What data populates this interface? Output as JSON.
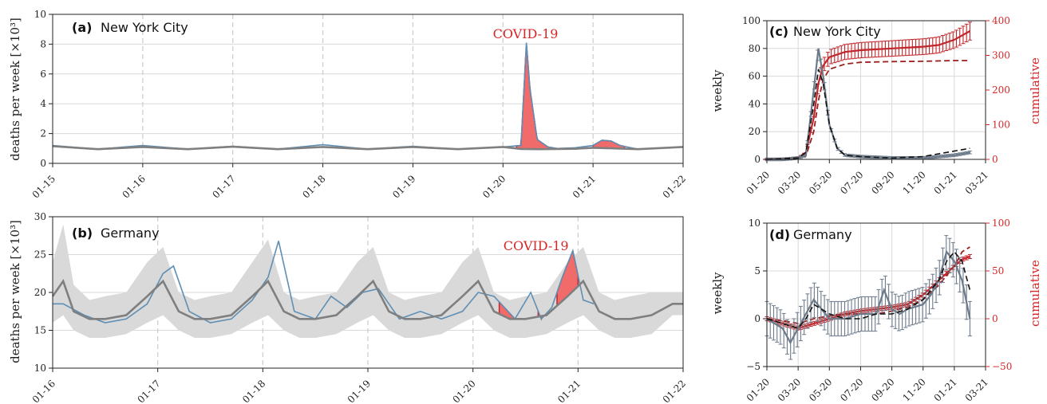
{
  "colors": {
    "covid_fill": "#f26b6b",
    "covid_line": "#c0262b",
    "observed": "#5f8fb4",
    "baseline": "#7f7f7f",
    "band": "#d9d9d9",
    "weekly_gray": "#6c7a8a",
    "cum_red": "#c0262b",
    "dash": "#111111",
    "dash_red": "#9a1f1f"
  },
  "chart_data": [
    {
      "id": "a",
      "type": "area",
      "panel_label": "(a)",
      "title": "New York City",
      "ylabel": "deaths per week $[\\times 10^3]$",
      "ylabel_text": "deaths per week [×10³]",
      "annotation": "COVID-19",
      "annotation_x": 5.25,
      "annotation_y": 8.4,
      "xlim": [
        0,
        7
      ],
      "ylim": [
        0,
        10
      ],
      "xticks": [
        0,
        1,
        2,
        3,
        4,
        5,
        6,
        7
      ],
      "xtick_labels": [
        "01-15",
        "01-16",
        "01-17",
        "01-18",
        "01-19",
        "01-20",
        "01-21",
        "01-22"
      ],
      "yticks": [
        0,
        2,
        4,
        6,
        8,
        10
      ],
      "ytick_labels": [
        "0",
        "2",
        "4",
        "6",
        "8",
        "10"
      ],
      "baseline": {
        "name": "",
        "x": [
          0,
          0.5,
          1,
          1.5,
          2,
          2.5,
          3,
          3.5,
          4,
          4.5,
          5,
          5.2,
          5.4,
          5.6,
          5.8,
          6,
          6.5,
          7
        ],
        "y": [
          1.15,
          0.95,
          1.1,
          0.95,
          1.12,
          0.95,
          1.1,
          0.95,
          1.1,
          0.95,
          1.1,
          0.97,
          0.95,
          0.96,
          0.98,
          1.05,
          0.95,
          1.1
        ]
      },
      "observed": {
        "name": "",
        "x": [
          0,
          0.5,
          1,
          1.5,
          2,
          2.5,
          3,
          3.5,
          4,
          4.5,
          5,
          5.2,
          5.26,
          5.3,
          5.38,
          5.5,
          5.6,
          5.8,
          6,
          6.1,
          6.2,
          6.3,
          6.5,
          7
        ],
        "y": [
          1.2,
          0.95,
          1.2,
          0.95,
          1.15,
          0.95,
          1.25,
          0.95,
          1.15,
          0.95,
          1.1,
          1.2,
          8.1,
          5.0,
          1.6,
          1.1,
          1.0,
          1.05,
          1.2,
          1.55,
          1.5,
          1.2,
          0.95,
          1.1
        ]
      },
      "covid_regions": [
        [
          5.15,
          5.6
        ],
        [
          6.0,
          6.35
        ]
      ]
    },
    {
      "id": "b",
      "type": "area",
      "panel_label": "(b)",
      "title": "Germany",
      "ylabel": "deaths per week $[\\times 10^3]$",
      "ylabel_text": "deaths per week [×10³]",
      "annotation": "COVID-19",
      "annotation_x": 4.6,
      "annotation_y": 25.6,
      "xlim": [
        0,
        6
      ],
      "ylim": [
        10,
        30
      ],
      "xticks": [
        0,
        1,
        2,
        3,
        4,
        5,
        6
      ],
      "xtick_labels": [
        "01-16",
        "01-17",
        "01-18",
        "01-19",
        "01-20",
        "01-21",
        "01-22"
      ],
      "yticks": [
        10,
        15,
        20,
        25,
        30
      ],
      "ytick_labels": [
        "10",
        "15",
        "20",
        "25",
        "30"
      ],
      "baseline": {
        "name": "",
        "x": [
          0,
          0.1,
          0.2,
          0.35,
          0.5,
          0.7,
          0.9,
          1.05,
          1.2,
          1.35,
          1.5,
          1.7,
          1.9,
          2.05,
          2.2,
          2.35,
          2.5,
          2.7,
          2.9,
          3.05,
          3.2,
          3.35,
          3.5,
          3.7,
          3.9,
          4.05,
          4.2,
          4.35,
          4.5,
          4.7,
          4.9,
          5.05,
          5.2,
          5.35,
          5.5,
          5.7,
          5.9,
          6
        ],
        "y": [
          19.5,
          21.5,
          17.5,
          16.5,
          16.5,
          17.0,
          19.5,
          21.5,
          17.5,
          16.5,
          16.5,
          17.0,
          19.5,
          21.5,
          17.5,
          16.5,
          16.5,
          17.0,
          19.5,
          21.5,
          17.5,
          16.5,
          16.5,
          17.0,
          19.5,
          21.5,
          17.5,
          16.5,
          16.5,
          17.0,
          19.5,
          21.5,
          17.5,
          16.5,
          16.5,
          17.0,
          18.5,
          18.5
        ]
      },
      "band": {
        "upper": [
          24,
          29,
          21,
          19,
          19.5,
          20,
          24,
          26,
          20,
          19,
          19.5,
          20,
          24,
          27,
          20,
          19,
          19.5,
          20,
          24,
          26,
          20,
          19,
          19.5,
          20,
          24,
          26,
          20,
          19,
          19.5,
          20,
          24,
          26,
          20,
          19,
          19.5,
          20,
          20,
          20
        ],
        "lower": [
          16,
          17,
          15,
          14,
          14,
          14.5,
          16,
          17,
          15,
          14,
          14,
          14.5,
          16,
          17,
          15,
          14,
          14,
          14.5,
          16,
          17,
          15,
          14,
          14,
          14.5,
          16,
          17,
          15,
          14,
          14,
          14.5,
          16,
          17,
          15,
          14,
          14,
          14.5,
          17,
          17
        ]
      },
      "observed": {
        "name": "",
        "x": [
          0,
          0.1,
          0.3,
          0.5,
          0.7,
          0.9,
          1.05,
          1.15,
          1.3,
          1.5,
          1.7,
          1.9,
          2.05,
          2.15,
          2.3,
          2.5,
          2.65,
          2.8,
          2.95,
          3.1,
          3.3,
          3.5,
          3.7,
          3.9,
          4.05,
          4.2,
          4.4,
          4.55,
          4.65,
          4.75,
          4.85,
          4.95,
          5.05,
          5.15
        ],
        "y": [
          18.5,
          18.5,
          17.0,
          16.0,
          16.5,
          18.5,
          22.5,
          23.5,
          17.5,
          16.0,
          16.5,
          19.0,
          22.0,
          26.8,
          17.5,
          16.5,
          19.5,
          18.0,
          20.0,
          20.5,
          16.5,
          17.5,
          16.5,
          17.5,
          20.0,
          19.5,
          16.5,
          20.0,
          16.5,
          18.0,
          22.0,
          25.5,
          19.0,
          18.5
        ]
      },
      "covid_regions": [
        [
          4.25,
          4.4
        ],
        [
          4.62,
          4.68
        ],
        [
          4.8,
          5.0
        ]
      ]
    },
    {
      "id": "c",
      "type": "line",
      "panel_label": "(c)",
      "title": "New York City",
      "ylabel": "weekly",
      "ylabel_right": "cumulative",
      "xlim": [
        0,
        14
      ],
      "ylim": [
        0,
        100
      ],
      "ylim_right": [
        0,
        400
      ],
      "xticks": [
        0,
        2,
        4,
        6,
        8,
        10,
        12,
        14
      ],
      "xtick_labels": [
        "01-20",
        "03-20",
        "05-20",
        "07-20",
        "09-20",
        "11-20",
        "01-21",
        "03-21"
      ],
      "yticks": [
        0,
        20,
        40,
        60,
        80,
        100
      ],
      "ytick_labels": [
        "0",
        "20",
        "40",
        "60",
        "80",
        "100"
      ],
      "yticks_right": [
        0,
        100,
        200,
        300,
        400
      ],
      "ytick_labels_right": [
        "0",
        "100",
        "200",
        "300",
        "400"
      ],
      "weekly": {
        "name": "",
        "x": [
          0,
          1,
          2,
          2.5,
          3,
          3.3,
          3.6,
          4,
          4.5,
          5,
          6,
          8,
          10,
          12,
          13
        ],
        "y": [
          0,
          0,
          1,
          3,
          50,
          80,
          60,
          25,
          8,
          3,
          2,
          1,
          1,
          3,
          5
        ]
      },
      "weekly_fit": {
        "name": "",
        "x": [
          0,
          2,
          2.5,
          3,
          3.3,
          3.6,
          4,
          4.5,
          5,
          6,
          8,
          10,
          11,
          12,
          13
        ],
        "y": [
          0,
          1,
          5,
          40,
          65,
          55,
          25,
          8,
          3,
          2,
          1,
          2,
          4,
          6,
          8
        ]
      },
      "cumulative": {
        "name": "",
        "x": [
          0,
          2,
          2.5,
          3,
          3.3,
          3.6,
          4,
          5,
          6,
          8,
          10,
          11,
          12,
          13
        ],
        "y": [
          0,
          5,
          20,
          120,
          220,
          270,
          295,
          310,
          315,
          320,
          325,
          330,
          345,
          370
        ]
      },
      "cumulative_fit": {
        "name": "",
        "x": [
          0,
          2,
          2.5,
          3,
          3.3,
          3.6,
          4,
          5,
          6,
          8,
          10,
          12,
          13
        ],
        "y": [
          0,
          3,
          10,
          80,
          170,
          230,
          260,
          275,
          280,
          282,
          283,
          285,
          285
        ]
      }
    },
    {
      "id": "d",
      "type": "line",
      "panel_label": "(d)",
      "title": "Germany",
      "ylabel": "weekly",
      "ylabel_right": "cumulative",
      "xlim": [
        0,
        14
      ],
      "ylim": [
        -5,
        10
      ],
      "ylim_right": [
        -50,
        100
      ],
      "xticks": [
        0,
        2,
        4,
        6,
        8,
        10,
        12,
        14
      ],
      "xtick_labels": [
        "01-20",
        "03-20",
        "05-20",
        "07-20",
        "09-20",
        "11-20",
        "01-21",
        "03-21"
      ],
      "yticks": [
        -5,
        0,
        5,
        10
      ],
      "ytick_labels": [
        "−5",
        "0",
        "5",
        "10"
      ],
      "yticks_right": [
        -50,
        0,
        50,
        100
      ],
      "ytick_labels_right": [
        "−50",
        "0",
        "50",
        "100"
      ],
      "weekly": {
        "name": "",
        "x": [
          0,
          0.5,
          1,
          1.5,
          2,
          2.5,
          3,
          3.5,
          4,
          5,
          6,
          7,
          7.5,
          8,
          8.5,
          9,
          10,
          10.5,
          11,
          11.5,
          12,
          12.5,
          13
        ],
        "y": [
          0,
          -0.5,
          -1,
          -2.5,
          -1,
          0.5,
          2,
          1,
          0,
          0,
          0.5,
          0.5,
          3,
          1,
          0.5,
          1,
          1.5,
          2.5,
          4,
          7,
          6,
          4,
          0
        ]
      },
      "weekly_fit": {
        "name": "",
        "x": [
          0,
          1,
          2,
          2.5,
          3,
          4,
          5,
          6,
          7,
          8,
          9,
          10,
          11,
          11.5,
          12,
          12.5,
          13
        ],
        "y": [
          0,
          -0.5,
          -1,
          0,
          1.5,
          0.5,
          0,
          0,
          0.5,
          0.5,
          1,
          2,
          4,
          6,
          7,
          6,
          3
        ]
      },
      "cumulative": {
        "name": "",
        "x": [
          0,
          1,
          2,
          3,
          4,
          5,
          6,
          7,
          8,
          9,
          10,
          11,
          12,
          12.5,
          13
        ],
        "y": [
          0,
          -5,
          -10,
          -5,
          0,
          5,
          8,
          10,
          12,
          15,
          25,
          40,
          55,
          62,
          65
        ]
      },
      "cumulative_fit": {
        "name": "",
        "x": [
          0,
          1,
          2,
          3,
          4,
          5,
          6,
          7,
          8,
          9,
          10,
          11,
          12,
          12.5,
          13
        ],
        "y": [
          0,
          -2,
          -5,
          0,
          3,
          5,
          5,
          5,
          8,
          12,
          20,
          35,
          55,
          70,
          75
        ]
      }
    }
  ]
}
